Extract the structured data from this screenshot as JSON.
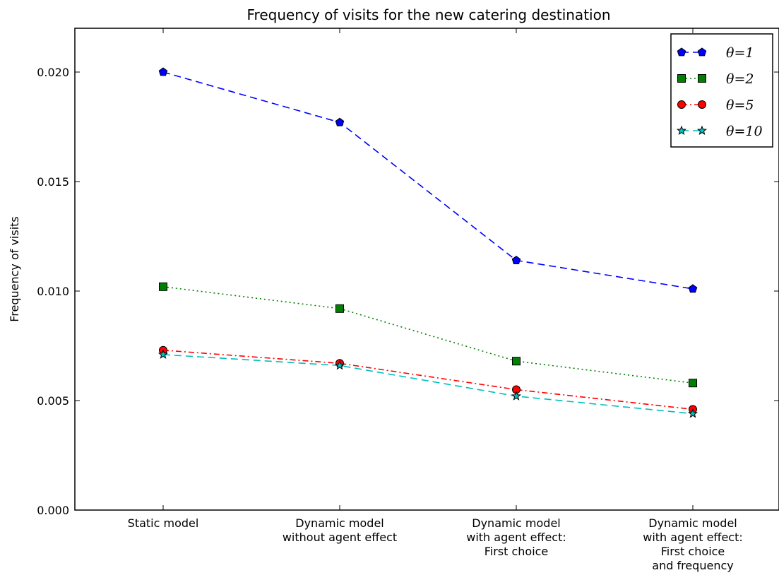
{
  "chart_data": {
    "type": "line",
    "title": "Frequency of visits for the new catering destination",
    "xlabel": "",
    "ylabel": "Frequency of visits",
    "ylim": [
      0,
      0.022
    ],
    "yticks": [
      "0.000",
      "0.005",
      "0.010",
      "0.015",
      "0.020"
    ],
    "ytick_values": [
      0,
      0.005,
      0.01,
      0.015,
      0.02
    ],
    "categories": [
      [
        "Static model"
      ],
      [
        "Dynamic model",
        "without agent effect"
      ],
      [
        "Dynamic model",
        "with agent effect:",
        "First choice"
      ],
      [
        "Dynamic model",
        "with agent effect:",
        "First choice",
        "and frequency"
      ]
    ],
    "grid": false,
    "legend_position": "top-right",
    "series": [
      {
        "name": "θ=1",
        "values": [
          0.02,
          0.0177,
          0.0114,
          0.0101
        ],
        "color": "#0000ff",
        "marker": "pentagon",
        "dash": "dashed"
      },
      {
        "name": "θ=2",
        "values": [
          0.0102,
          0.0092,
          0.0068,
          0.0058
        ],
        "color": "#008000",
        "marker": "square",
        "dash": "dotted"
      },
      {
        "name": "θ=5",
        "values": [
          0.0073,
          0.0067,
          0.0055,
          0.0046
        ],
        "color": "#ff0000",
        "marker": "circle",
        "dash": "dashdot"
      },
      {
        "name": "θ=10",
        "values": [
          0.0071,
          0.0066,
          0.0052,
          0.0044
        ],
        "color": "#00bfbf",
        "marker": "star",
        "dash": "dashed"
      }
    ]
  }
}
